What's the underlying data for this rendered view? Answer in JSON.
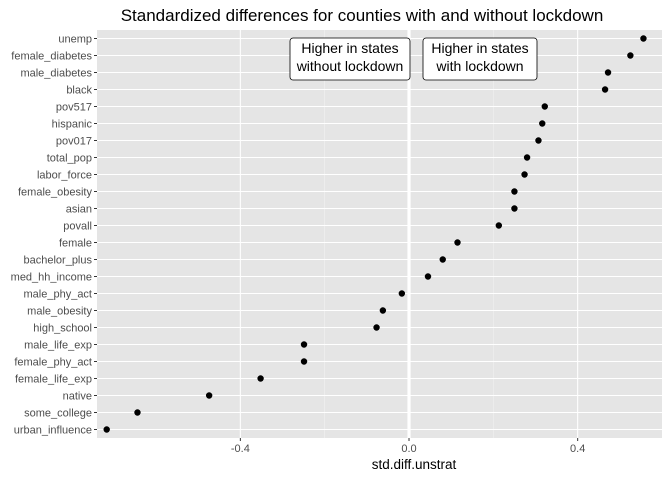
{
  "chart_data": {
    "type": "scatter",
    "title": "Standardized differences for counties with and without lockdown",
    "xlabel": "std.diff.unstrat",
    "ylabel": "",
    "xlim": [
      -0.74,
      0.6
    ],
    "x_ticks": [
      -0.4,
      0.0,
      0.4
    ],
    "x_tick_labels": [
      "-0.4",
      "0.0",
      "0.4"
    ],
    "grid": true,
    "reference_line_x": 0,
    "categories": [
      "unemp",
      "female_diabetes",
      "male_diabetes",
      "black",
      "pov517",
      "hispanic",
      "pov017",
      "total_pop",
      "labor_force",
      "female_obesity",
      "asian",
      "povall",
      "female",
      "bachelor_plus",
      "med_hh_income",
      "male_phy_act",
      "male_obesity",
      "high_school",
      "male_life_exp",
      "female_phy_act",
      "female_life_exp",
      "native",
      "some_college",
      "urban_influence"
    ],
    "values": [
      0.556,
      0.525,
      0.472,
      0.465,
      0.322,
      0.316,
      0.307,
      0.28,
      0.274,
      0.25,
      0.25,
      0.213,
      0.115,
      0.08,
      0.045,
      -0.017,
      -0.062,
      -0.077,
      -0.249,
      -0.249,
      -0.352,
      -0.474,
      -0.644,
      -0.717
    ],
    "annotations": [
      {
        "lines": [
          "Higher in states",
          "without lockdown"
        ]
      },
      {
        "lines": [
          "Higher in states",
          "with lockdown"
        ]
      }
    ],
    "colors": {
      "panel": "#e5e5e5",
      "grid_major": "#ffffff",
      "point": "#000000",
      "tick_label": "#4d4d4d"
    }
  }
}
